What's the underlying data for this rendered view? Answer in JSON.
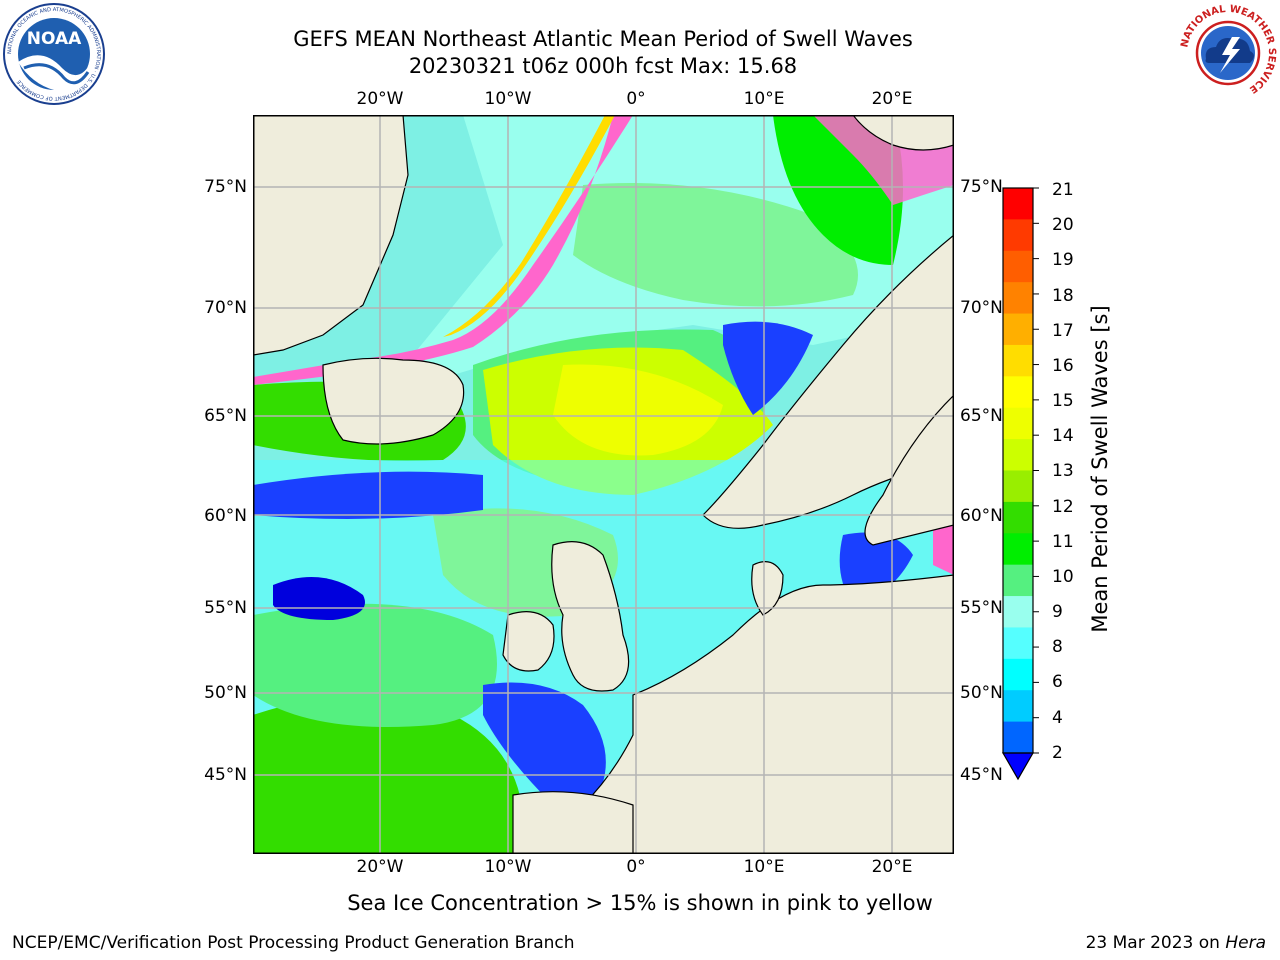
{
  "title": {
    "line1": "GEFS MEAN Northeast Atlantic Mean Period of Swell Waves",
    "line2": "20230321 t06z 000h fcst   Max: 15.68"
  },
  "logos": {
    "left": {
      "name": "noaa-logo",
      "text": "NOAA",
      "ring_text": "NATIONAL OCEANIC AND ATMOSPHERIC ADMINISTRATION · U.S. DEPARTMENT OF COMMERCE"
    },
    "right": {
      "name": "nws-logo",
      "ring_text": "NATIONAL WEATHER SERVICE"
    }
  },
  "map": {
    "longitude_labels": [
      "20°W",
      "10°W",
      "0°",
      "10°E",
      "20°E"
    ],
    "latitude_labels_left": [
      "75°N",
      "70°N",
      "65°N",
      "60°N",
      "55°N",
      "50°N",
      "45°N"
    ],
    "latitude_labels_right": [
      "75°N",
      "70°N",
      "65°N",
      "60°N",
      "55°N",
      "50°N",
      "45°N"
    ],
    "colors": {
      "land": "#efeddc",
      "frame": "#000000",
      "grid": "#b4b4b4"
    }
  },
  "colorbar": {
    "title": "Mean Period of Swell Waves [s]",
    "labels": [
      "21",
      "20",
      "19",
      "18",
      "17",
      "16",
      "15",
      "14",
      "13",
      "12",
      "11",
      "10",
      "9",
      "8",
      "6",
      "4",
      "2"
    ],
    "colors": [
      "#ff0000",
      "#ff3a00",
      "#ff5e00",
      "#ff8200",
      "#ffaf00",
      "#ffdd00",
      "#ffff00",
      "#eeff00",
      "#ccff00",
      "#99ee00",
      "#33dd00",
      "#00ee00",
      "#55f080",
      "#99ffee",
      "#55ffff",
      "#00ffff",
      "#00ccff",
      "#0066ff"
    ],
    "extend_color": "#0000ff"
  },
  "caption": "Sea Ice Concentration > 15% is shown in pink to yellow",
  "footer": {
    "left": "NCEP/EMC/Verification Post Processing Product Generation Branch",
    "right_prefix": "23 Mar 2023 on ",
    "right_italic": "Hera"
  }
}
